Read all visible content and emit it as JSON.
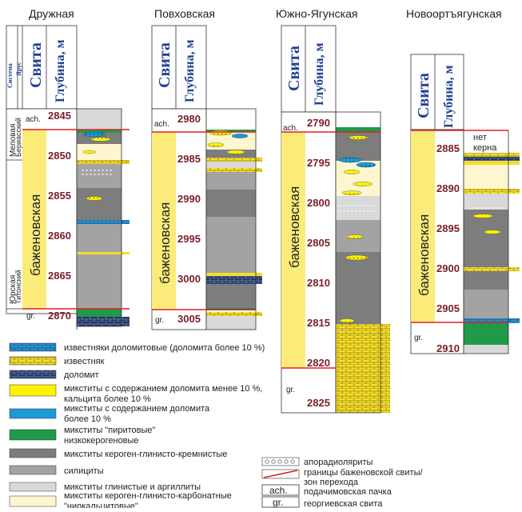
{
  "wells": [
    {
      "name": "Дружная",
      "svita_header": "Свита",
      "depth_header": "Глубина, м",
      "system_header": "Система",
      "stage_header": "Ярус",
      "system_labels": [
        "Меловая",
        "Юрская"
      ],
      "stage_labels": [
        "Бериасский",
        "Титонский"
      ],
      "formation": "баженовская",
      "top_label": "ach.",
      "bottom_label": "gr.",
      "depths": [
        "2845",
        "2850",
        "2855",
        "2860",
        "2865",
        "2870"
      ]
    },
    {
      "name": "Повховская",
      "svita_header": "Свита",
      "depth_header": "Глубина, м",
      "formation": "баженовская",
      "top_label": "ach.",
      "bottom_label": "gr.",
      "depths": [
        "2980",
        "2985",
        "2990",
        "2995",
        "3000",
        "3005"
      ]
    },
    {
      "name": "Южно-Ягунская",
      "svita_header": "Свита",
      "depth_header": "Глубина, м",
      "formation": "баженовская",
      "top_label": "ach.",
      "bottom_label": "gr.",
      "depths": [
        "2790",
        "2795",
        "2800",
        "2805",
        "2810",
        "2815",
        "2820",
        "2825"
      ]
    },
    {
      "name": "Новоортъягунская",
      "svita_header": "Свита",
      "depth_header": "Глубина, м",
      "formation": "баженовская",
      "bottom_label": "gr.",
      "core_note": [
        "нет",
        "керна"
      ],
      "depths": [
        "2885",
        "2890",
        "2895",
        "2900",
        "2905",
        "2910"
      ]
    }
  ],
  "legend": {
    "left": [
      {
        "key": "dolomitic-limestone",
        "lines": [
          "известняки доломитовые (доломита более 10 %)"
        ],
        "color": "#2b90d0"
      },
      {
        "key": "limestone",
        "lines": [
          "известняк"
        ],
        "color": "#f3de2c"
      },
      {
        "key": "dolomite",
        "lines": [
          "доломит"
        ],
        "color": "#253a66"
      },
      {
        "key": "mixtite-dolomite-lt10",
        "lines": [
          "микститы с содержанием доломита менее 10 %,",
          "кальцита более 10 %"
        ],
        "color": "#fff200"
      },
      {
        "key": "mixtite-dolomite-gt10",
        "lines": [
          "микститы с содержанием доломита",
          "более 10 %"
        ],
        "color": "#1b9ad6"
      },
      {
        "key": "pyrite-mixtite",
        "lines": [
          "микститы \"пиритовые\"",
          "низкокерогеновые"
        ],
        "color": "#1e9a48"
      },
      {
        "key": "kerogen-clay-siliceous",
        "lines": [
          "микститы кероген-глинисто-кремнистые"
        ],
        "color": "#7d7d7d"
      },
      {
        "key": "silicite",
        "lines": [
          "силициты"
        ],
        "color": "#a3a3a3"
      },
      {
        "key": "clay-mixtite",
        "lines": [
          "микститы глинистые и аргиллиты"
        ],
        "color": "#d9d9d9"
      },
      {
        "key": "kerogen-clay-siliceous-carbonate",
        "lines": [
          "микститы кероген-глинисто-карбонатные",
          "\"ниокальцитовые\""
        ],
        "color": "#fdf6cf"
      }
    ],
    "right": [
      {
        "key": "apoRadiolarite",
        "lines": [
          "апорадиоляриты"
        ]
      },
      {
        "key": "boundary",
        "lines": [
          "границы баженовской свиты/",
          "зон перехода"
        ]
      },
      {
        "key": "ach",
        "box": "ach.",
        "lines": [
          "подачимовская пачка"
        ]
      },
      {
        "key": "gr",
        "box": "gr.",
        "lines": [
          "георгиевская свита"
        ]
      }
    ]
  },
  "colors": {
    "formation_yellow": "#fbec7a",
    "depth_text": "#7a1e28",
    "header_blue": "#1f3f93",
    "boundary_red": "#e01e25",
    "dark_grey": "#7d7d7d",
    "mid_grey": "#a3a3a3",
    "light_grey": "#d9d9d9",
    "cream": "#fdf6cf",
    "green": "#1e9a48",
    "yellow": "#f3de2c",
    "blue": "#2b90d0",
    "navy": "#253a66"
  }
}
